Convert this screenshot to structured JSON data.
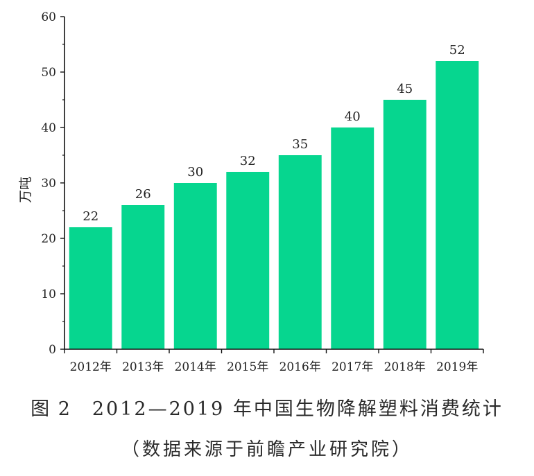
{
  "chart_data": {
    "type": "bar",
    "categories": [
      "2012年",
      "2013年",
      "2014年",
      "2015年",
      "2016年",
      "2017年",
      "2018年",
      "2019年"
    ],
    "values": [
      22,
      26,
      30,
      32,
      35,
      40,
      45,
      52
    ],
    "data_labels": [
      "22",
      "26",
      "30",
      "32",
      "35",
      "40",
      "45",
      "52"
    ],
    "ylabel": "万吨",
    "xlabel": "",
    "ylim": [
      0,
      60
    ],
    "yticks": [
      0,
      10,
      20,
      30,
      40,
      50,
      60
    ],
    "ytick_labels": [
      "0",
      "10",
      "20",
      "30",
      "40",
      "50",
      "60"
    ],
    "grid": false,
    "legend": "none",
    "bar_color": "#06d68f"
  },
  "caption": {
    "figure_number": "图 2",
    "text": "2012—2019 年中国生物降解塑料消费统计",
    "source": "（数据来源于前瞻产业研究院）"
  }
}
